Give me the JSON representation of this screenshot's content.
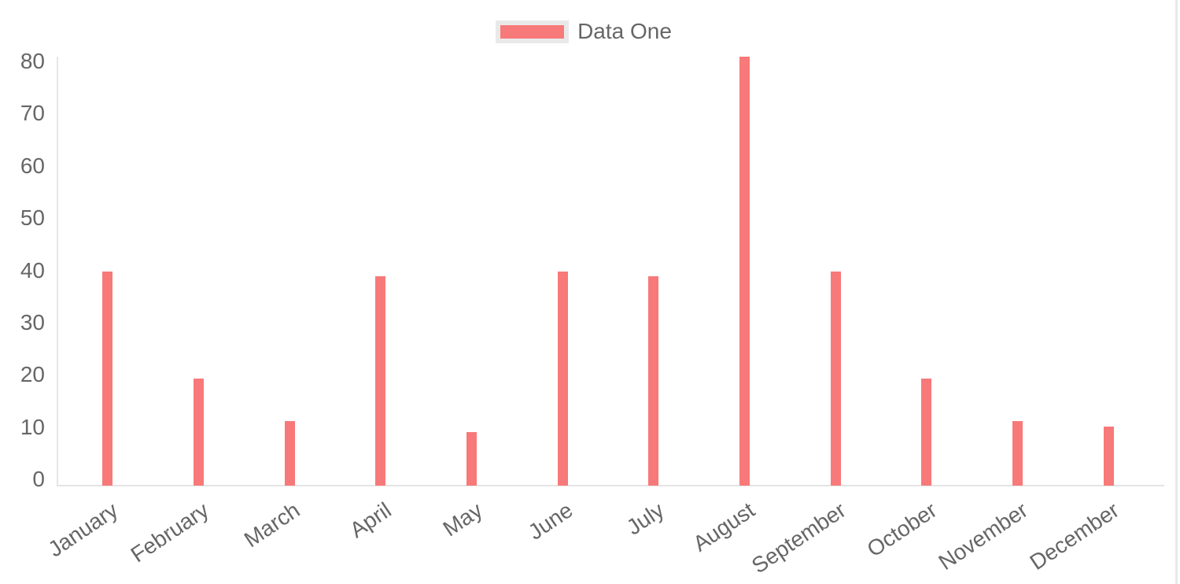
{
  "chart_data": {
    "type": "bar",
    "title": "",
    "categories": [
      "January",
      "February",
      "March",
      "April",
      "May",
      "June",
      "July",
      "August",
      "September",
      "October",
      "November",
      "December"
    ],
    "series": [
      {
        "name": "Data One",
        "color": "#f87979",
        "values": [
          40,
          20,
          12,
          39,
          10,
          40,
          39,
          80,
          40,
          20,
          12,
          11
        ]
      }
    ],
    "xlabel": "",
    "ylabel": "",
    "ylim": [
      0,
      80
    ],
    "yticks": [
      0,
      10,
      20,
      30,
      40,
      50,
      60,
      70,
      80
    ],
    "grid": false,
    "legend_position": "top",
    "background": "#ffffff",
    "axis_line_color": "#e6e6e6",
    "tick_text_color": "#666666",
    "legend_swatch_border_color": "#e9e9e9"
  }
}
